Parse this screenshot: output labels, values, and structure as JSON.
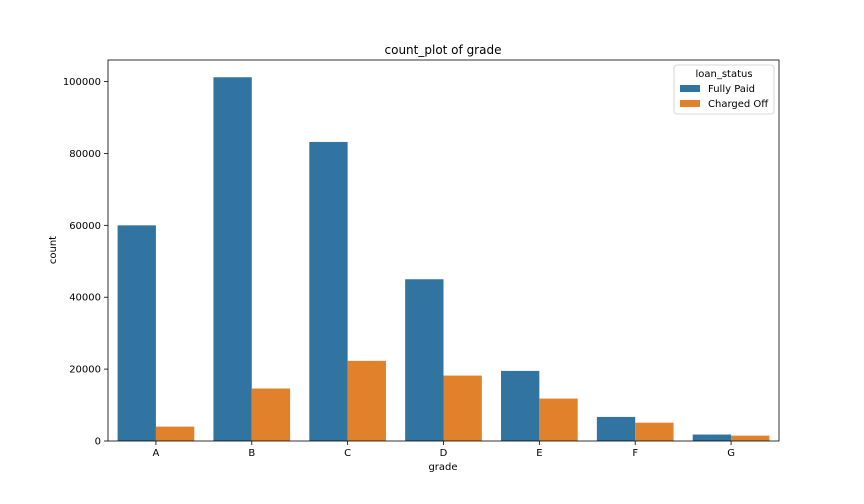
{
  "chart_data": {
    "type": "bar",
    "title": "count_plot of grade",
    "xlabel": "grade",
    "ylabel": "count",
    "categories": [
      "A",
      "B",
      "C",
      "D",
      "E",
      "F",
      "G"
    ],
    "series": [
      {
        "name": "Fully Paid",
        "color": "#3274a1",
        "values": [
          60000,
          101200,
          83200,
          45000,
          19500,
          6700,
          1800
        ]
      },
      {
        "name": "Charged Off",
        "color": "#e1812c",
        "values": [
          4000,
          14600,
          22300,
          18200,
          11800,
          5100,
          1500
        ]
      }
    ],
    "ylim": [
      0,
      106000
    ],
    "yticks": [
      0,
      20000,
      40000,
      60000,
      80000,
      100000
    ],
    "ytick_labels": [
      "0",
      "20000",
      "40000",
      "60000",
      "80000",
      "100000"
    ],
    "grid": false,
    "legend": {
      "title": "loan_status",
      "position": "top-right"
    }
  }
}
